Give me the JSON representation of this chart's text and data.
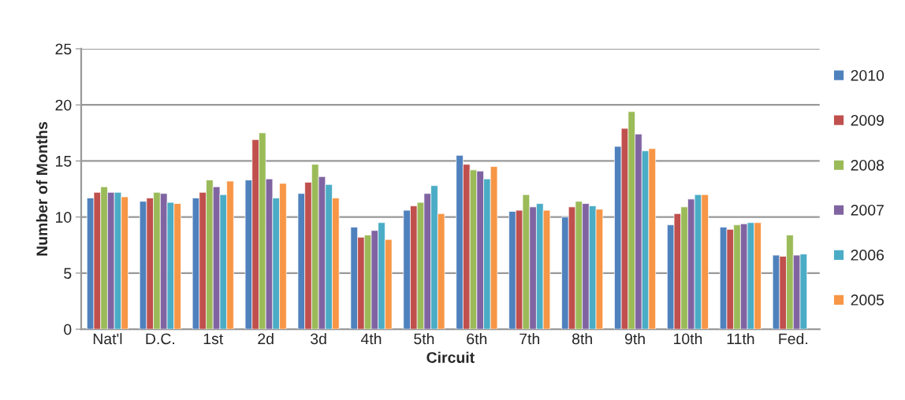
{
  "chart_data": {
    "type": "bar",
    "xlabel": "Circuit",
    "ylabel": "Number of Months",
    "categories": [
      "Nat'l",
      "D.C.",
      "1st",
      "2d",
      "3d",
      "4th",
      "5th",
      "6th",
      "7th",
      "8th",
      "9th",
      "10th",
      "11th",
      "Fed."
    ],
    "series": [
      {
        "name": "2010",
        "color": "#4f81bd",
        "values": [
          11.7,
          11.4,
          11.7,
          13.3,
          12.1,
          9.1,
          10.6,
          15.5,
          10.5,
          10.0,
          16.3,
          9.3,
          9.1,
          6.6
        ]
      },
      {
        "name": "2009",
        "color": "#c0504d",
        "values": [
          12.2,
          11.7,
          12.2,
          16.9,
          13.1,
          8.2,
          11.0,
          14.7,
          10.6,
          10.9,
          17.9,
          10.3,
          8.9,
          6.5
        ]
      },
      {
        "name": "2008",
        "color": "#9bbb59",
        "values": [
          12.7,
          12.2,
          13.3,
          17.5,
          14.7,
          8.4,
          11.3,
          14.2,
          12.0,
          11.4,
          19.4,
          10.9,
          9.3,
          8.4
        ]
      },
      {
        "name": "2007",
        "color": "#8064a2",
        "values": [
          12.2,
          12.1,
          12.7,
          13.4,
          13.6,
          8.8,
          12.1,
          14.1,
          10.9,
          11.2,
          17.4,
          11.6,
          9.4,
          6.6
        ]
      },
      {
        "name": "2006",
        "color": "#4bacc6",
        "values": [
          12.2,
          11.3,
          12.0,
          11.7,
          12.9,
          9.5,
          12.8,
          13.4,
          11.2,
          11.0,
          15.9,
          12.0,
          9.5,
          6.7
        ]
      },
      {
        "name": "2005",
        "color": "#f79646",
        "values": [
          11.8,
          11.2,
          13.2,
          13.0,
          11.7,
          8.0,
          10.3,
          14.5,
          10.6,
          10.7,
          16.1,
          12.0,
          9.5,
          null
        ]
      }
    ],
    "ylim": [
      0,
      25
    ],
    "yticks": [
      0,
      5,
      10,
      15,
      20,
      25
    ],
    "grid": "y",
    "legend": "right"
  }
}
